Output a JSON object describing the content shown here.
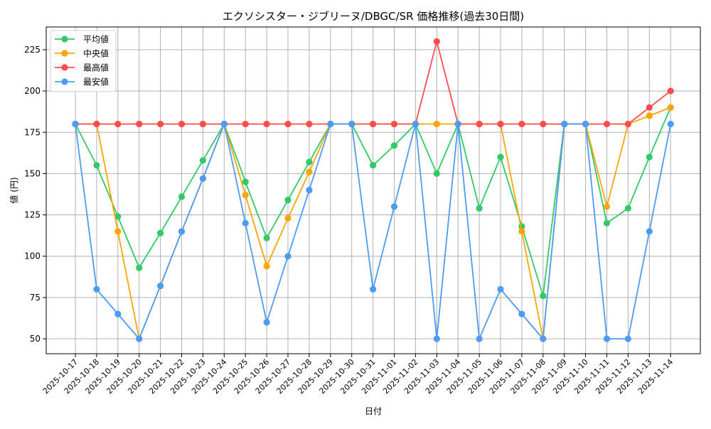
{
  "chart_data": {
    "type": "line",
    "title": "エクソシスター・ジブリーヌ/DBGC/SR 価格推移(過去30日間)",
    "xlabel": "日付",
    "ylabel": "値 (円)",
    "ylim": [
      41,
      240
    ],
    "yticks": [
      50,
      75,
      100,
      125,
      150,
      175,
      200,
      225
    ],
    "grid": true,
    "legend_position": "upper left",
    "categories": [
      "2025-10-17",
      "2025-10-18",
      "2025-10-19",
      "2025-10-20",
      "2025-10-21",
      "2025-10-22",
      "2025-10-23",
      "2025-10-24",
      "2025-10-25",
      "2025-10-26",
      "2025-10-27",
      "2025-10-28",
      "2025-10-29",
      "2025-10-30",
      "2025-10-31",
      "2025-11-01",
      "2025-11-02",
      "2025-11-03",
      "2025-11-04",
      "2025-11-05",
      "2025-11-06",
      "2025-11-07",
      "2025-11-08",
      "2025-11-09",
      "2025-11-10",
      "2025-11-11",
      "2025-11-12",
      "2025-11-13",
      "2025-11-14"
    ],
    "series": [
      {
        "name": "平均値",
        "color": "#33c966",
        "values": [
          180,
          155,
          124,
          93,
          114,
          136,
          158,
          180,
          145,
          111,
          134,
          157,
          180,
          180,
          155,
          167,
          180,
          150,
          180,
          129,
          160,
          118,
          76,
          180,
          180,
          120,
          129,
          160,
          190
        ]
      },
      {
        "name": "中央値",
        "color": "#ffa500",
        "values": [
          180,
          180,
          115,
          50,
          82,
          115,
          147,
          180,
          137,
          94,
          123,
          151,
          180,
          180,
          180,
          180,
          180,
          180,
          180,
          180,
          180,
          115,
          50,
          180,
          180,
          130,
          180,
          185,
          190
        ]
      },
      {
        "name": "最高値",
        "color": "#ff4d4d",
        "values": [
          180,
          180,
          180,
          180,
          180,
          180,
          180,
          180,
          180,
          180,
          180,
          180,
          180,
          180,
          180,
          180,
          180,
          230,
          180,
          180,
          180,
          180,
          180,
          180,
          180,
          180,
          180,
          190,
          200
        ]
      },
      {
        "name": "最安値",
        "color": "#4d9bf5",
        "values": [
          180,
          80,
          65,
          50,
          82,
          115,
          147,
          180,
          120,
          60,
          100,
          140,
          180,
          180,
          80,
          130,
          180,
          50,
          180,
          50,
          80,
          65,
          50,
          180,
          180,
          50,
          50,
          115,
          180
        ]
      }
    ]
  }
}
